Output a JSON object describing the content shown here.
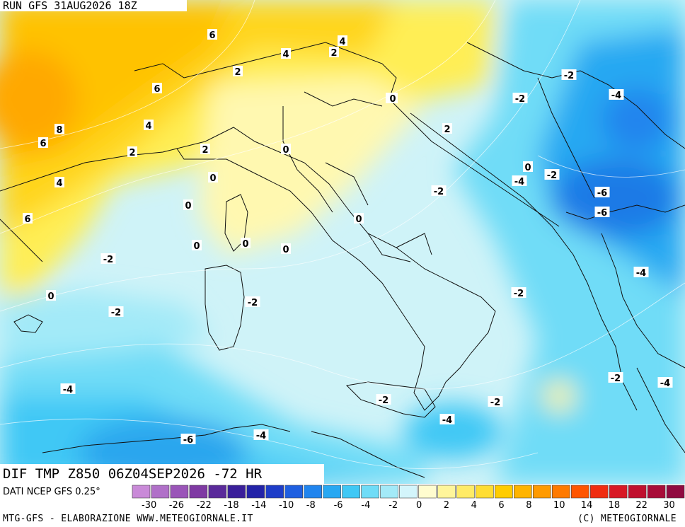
{
  "header": {
    "run": "RUN GFS 31AUG2026 18Z"
  },
  "title": "DIF TMP Z850 06Z04SEP2026 -72 HR",
  "source": "DATI NCEP GFS 0.25°",
  "footer": {
    "left": "MTG-GFS - ELABORAZIONE WWW.METEOGIORNALE.IT",
    "right": "(C) METEOGIORNALE"
  },
  "colors": {
    "scale": [
      "#c98ad8",
      "#b070c8",
      "#9a55b8",
      "#7f3aa3",
      "#5a2a9a",
      "#3a1f9a",
      "#2323a8",
      "#1e3dc8",
      "#1f5fe0",
      "#2185ee",
      "#28a8f2",
      "#3fc8f5",
      "#6fdcf7",
      "#a3eaf8",
      "#d3f5fb",
      "#fffccf",
      "#fff59a",
      "#ffeb66",
      "#ffdd33",
      "#ffcc00",
      "#ffb400",
      "#ff9a00",
      "#ff7a00",
      "#ff5500",
      "#f02c10",
      "#d81824",
      "#c0102e",
      "#a80c38",
      "#900a40"
    ]
  },
  "scale_labels": [
    "-30",
    "-26",
    "-22",
    "-18",
    "-14",
    "-10",
    "-8",
    "-6",
    "-4",
    "-2",
    "0",
    "2",
    "4",
    "6",
    "8",
    "10",
    "14",
    "18",
    "22",
    "30"
  ],
  "contour_labels": [
    {
      "text": "6"
    },
    {
      "text": "4"
    },
    {
      "text": "2"
    },
    {
      "text": "4"
    },
    {
      "text": "2"
    },
    {
      "text": "6"
    },
    {
      "text": "4"
    },
    {
      "text": "8"
    },
    {
      "text": "6"
    },
    {
      "text": "2"
    },
    {
      "text": "2"
    },
    {
      "text": "0"
    },
    {
      "text": "0"
    },
    {
      "text": "4"
    },
    {
      "text": "0"
    },
    {
      "text": "6"
    },
    {
      "text": "0"
    },
    {
      "text": "0"
    },
    {
      "text": "0"
    },
    {
      "text": "0"
    },
    {
      "text": "2"
    },
    {
      "text": "0"
    },
    {
      "text": "-2"
    },
    {
      "text": "-2"
    },
    {
      "text": "-2"
    },
    {
      "text": "-4"
    },
    {
      "text": "0"
    },
    {
      "text": "-2"
    },
    {
      "text": "-4"
    },
    {
      "text": "-2"
    },
    {
      "text": "-6"
    },
    {
      "text": "-6"
    },
    {
      "text": "-4"
    },
    {
      "text": "-2"
    },
    {
      "text": "0"
    },
    {
      "text": "-2"
    },
    {
      "text": "-2"
    },
    {
      "text": "-4"
    },
    {
      "text": "-2"
    },
    {
      "text": "-2"
    },
    {
      "text": "-4"
    },
    {
      "text": "-4"
    },
    {
      "text": "-6"
    },
    {
      "text": "-4"
    },
    {
      "text": "-2"
    },
    {
      "text": "0"
    }
  ]
}
